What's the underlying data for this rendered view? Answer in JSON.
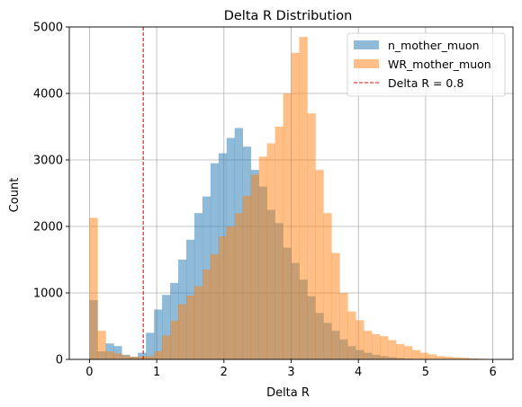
{
  "chart_data": {
    "type": "bar",
    "title": "Delta R Distribution",
    "xlabel": "Delta R",
    "ylabel": "Count",
    "xlim": [
      -0.3,
      6.3
    ],
    "ylim": [
      0,
      5000
    ],
    "xticks": [
      0,
      1,
      2,
      3,
      4,
      5,
      6
    ],
    "yticks": [
      0,
      1000,
      2000,
      3000,
      4000,
      5000
    ],
    "xtick_labels": [
      "0",
      "1",
      "2",
      "3",
      "4",
      "5",
      "6"
    ],
    "ytick_labels": [
      "0",
      "1000",
      "2000",
      "3000",
      "4000",
      "5000"
    ],
    "grid": true,
    "legend_position": "top-right",
    "bin_edges": [
      0.0,
      0.12,
      0.24,
      0.36,
      0.48,
      0.6,
      0.72,
      0.84,
      0.96,
      1.08,
      1.2,
      1.32,
      1.44,
      1.56,
      1.68,
      1.8,
      1.92,
      2.04,
      2.16,
      2.28,
      2.4,
      2.52,
      2.64,
      2.76,
      2.88,
      3.0,
      3.12,
      3.24,
      3.36,
      3.48,
      3.6,
      3.72,
      3.84,
      3.96,
      4.08,
      4.2,
      4.32,
      4.44,
      4.56,
      4.68,
      4.8,
      4.92,
      5.04,
      5.16,
      5.28,
      5.4,
      5.52,
      5.64,
      5.76,
      5.88,
      6.0
    ],
    "series": [
      {
        "name": "n_mother_muon",
        "color": "#1f77b4",
        "opacity": 0.5,
        "values": [
          890,
          120,
          240,
          200,
          70,
          40,
          100,
          400,
          750,
          970,
          1150,
          1500,
          1800,
          2200,
          2450,
          2950,
          3100,
          3330,
          3480,
          3200,
          2850,
          2600,
          2250,
          2050,
          1680,
          1450,
          1200,
          950,
          700,
          550,
          430,
          300,
          200,
          140,
          100,
          70,
          50,
          35,
          20,
          10,
          5,
          3,
          2,
          1,
          0,
          0,
          0,
          0,
          0,
          0
        ]
      },
      {
        "name": "WR_mother_muon",
        "color": "#ff7f0e",
        "opacity": 0.5,
        "values": [
          2130,
          430,
          120,
          90,
          60,
          40,
          40,
          50,
          120,
          360,
          580,
          830,
          960,
          1100,
          1350,
          1580,
          1850,
          2000,
          2200,
          2460,
          2780,
          3050,
          3250,
          3500,
          4000,
          4610,
          4850,
          3700,
          2850,
          2200,
          1600,
          1000,
          720,
          590,
          430,
          380,
          350,
          290,
          230,
          200,
          140,
          100,
          75,
          50,
          40,
          30,
          25,
          15,
          10,
          5
        ]
      }
    ],
    "reference_line": {
      "label": "Delta R = 0.8",
      "x": 0.8,
      "color": "#ff0000",
      "style": "dashed"
    }
  }
}
